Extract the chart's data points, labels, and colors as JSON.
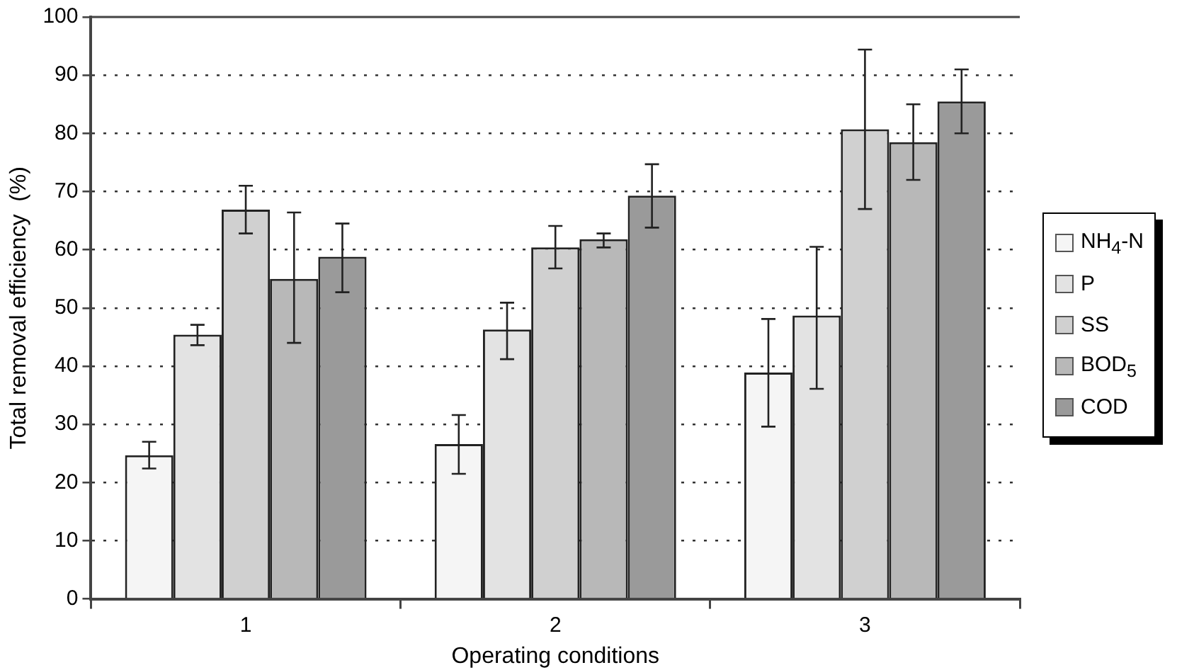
{
  "chart_data": {
    "type": "bar",
    "xlabel": "Operating conditions",
    "ylabel": "Total removal efficiency  (%)",
    "categories": [
      "1",
      "2",
      "3"
    ],
    "series": [
      {
        "name": "NH$_{4}$-N",
        "color": "#f5f5f5",
        "values": [
          24.7,
          26.6,
          38.9
        ],
        "errors": [
          [
            22.4,
            27
          ],
          [
            21.5,
            31.6
          ],
          [
            29.6,
            48.1
          ]
        ]
      },
      {
        "name": "P",
        "color": "#e3e3e3",
        "values": [
          45.4,
          46.3,
          48.7
        ],
        "errors": [
          [
            43.6,
            47.1
          ],
          [
            41.2,
            50.9
          ],
          [
            36.1,
            60.5
          ]
        ]
      },
      {
        "name": "SS",
        "color": "#d0d0d0",
        "values": [
          66.9,
          60.4,
          80.7
        ],
        "errors": [
          [
            62.8,
            71
          ],
          [
            56.8,
            64.1
          ],
          [
            67,
            94.4
          ]
        ]
      },
      {
        "name": "BOD$_{5}$",
        "color": "#b8b8b8",
        "values": [
          55,
          61.8,
          78.5
        ],
        "errors": [
          [
            44,
            66.4
          ],
          [
            60.4,
            62.8
          ],
          [
            72,
            85
          ]
        ]
      },
      {
        "name": "COD",
        "color": "#9a9a9a",
        "values": [
          58.8,
          69.3,
          85.5
        ],
        "errors": [
          [
            52.7,
            64.5
          ],
          [
            63.8,
            74.7
          ],
          [
            80,
            91
          ]
        ]
      }
    ],
    "ylim": [
      0,
      100
    ],
    "yticks": [
      0,
      10,
      20,
      30,
      40,
      50,
      60,
      70,
      80,
      90,
      100
    ],
    "grid": "y",
    "legend": "right"
  }
}
